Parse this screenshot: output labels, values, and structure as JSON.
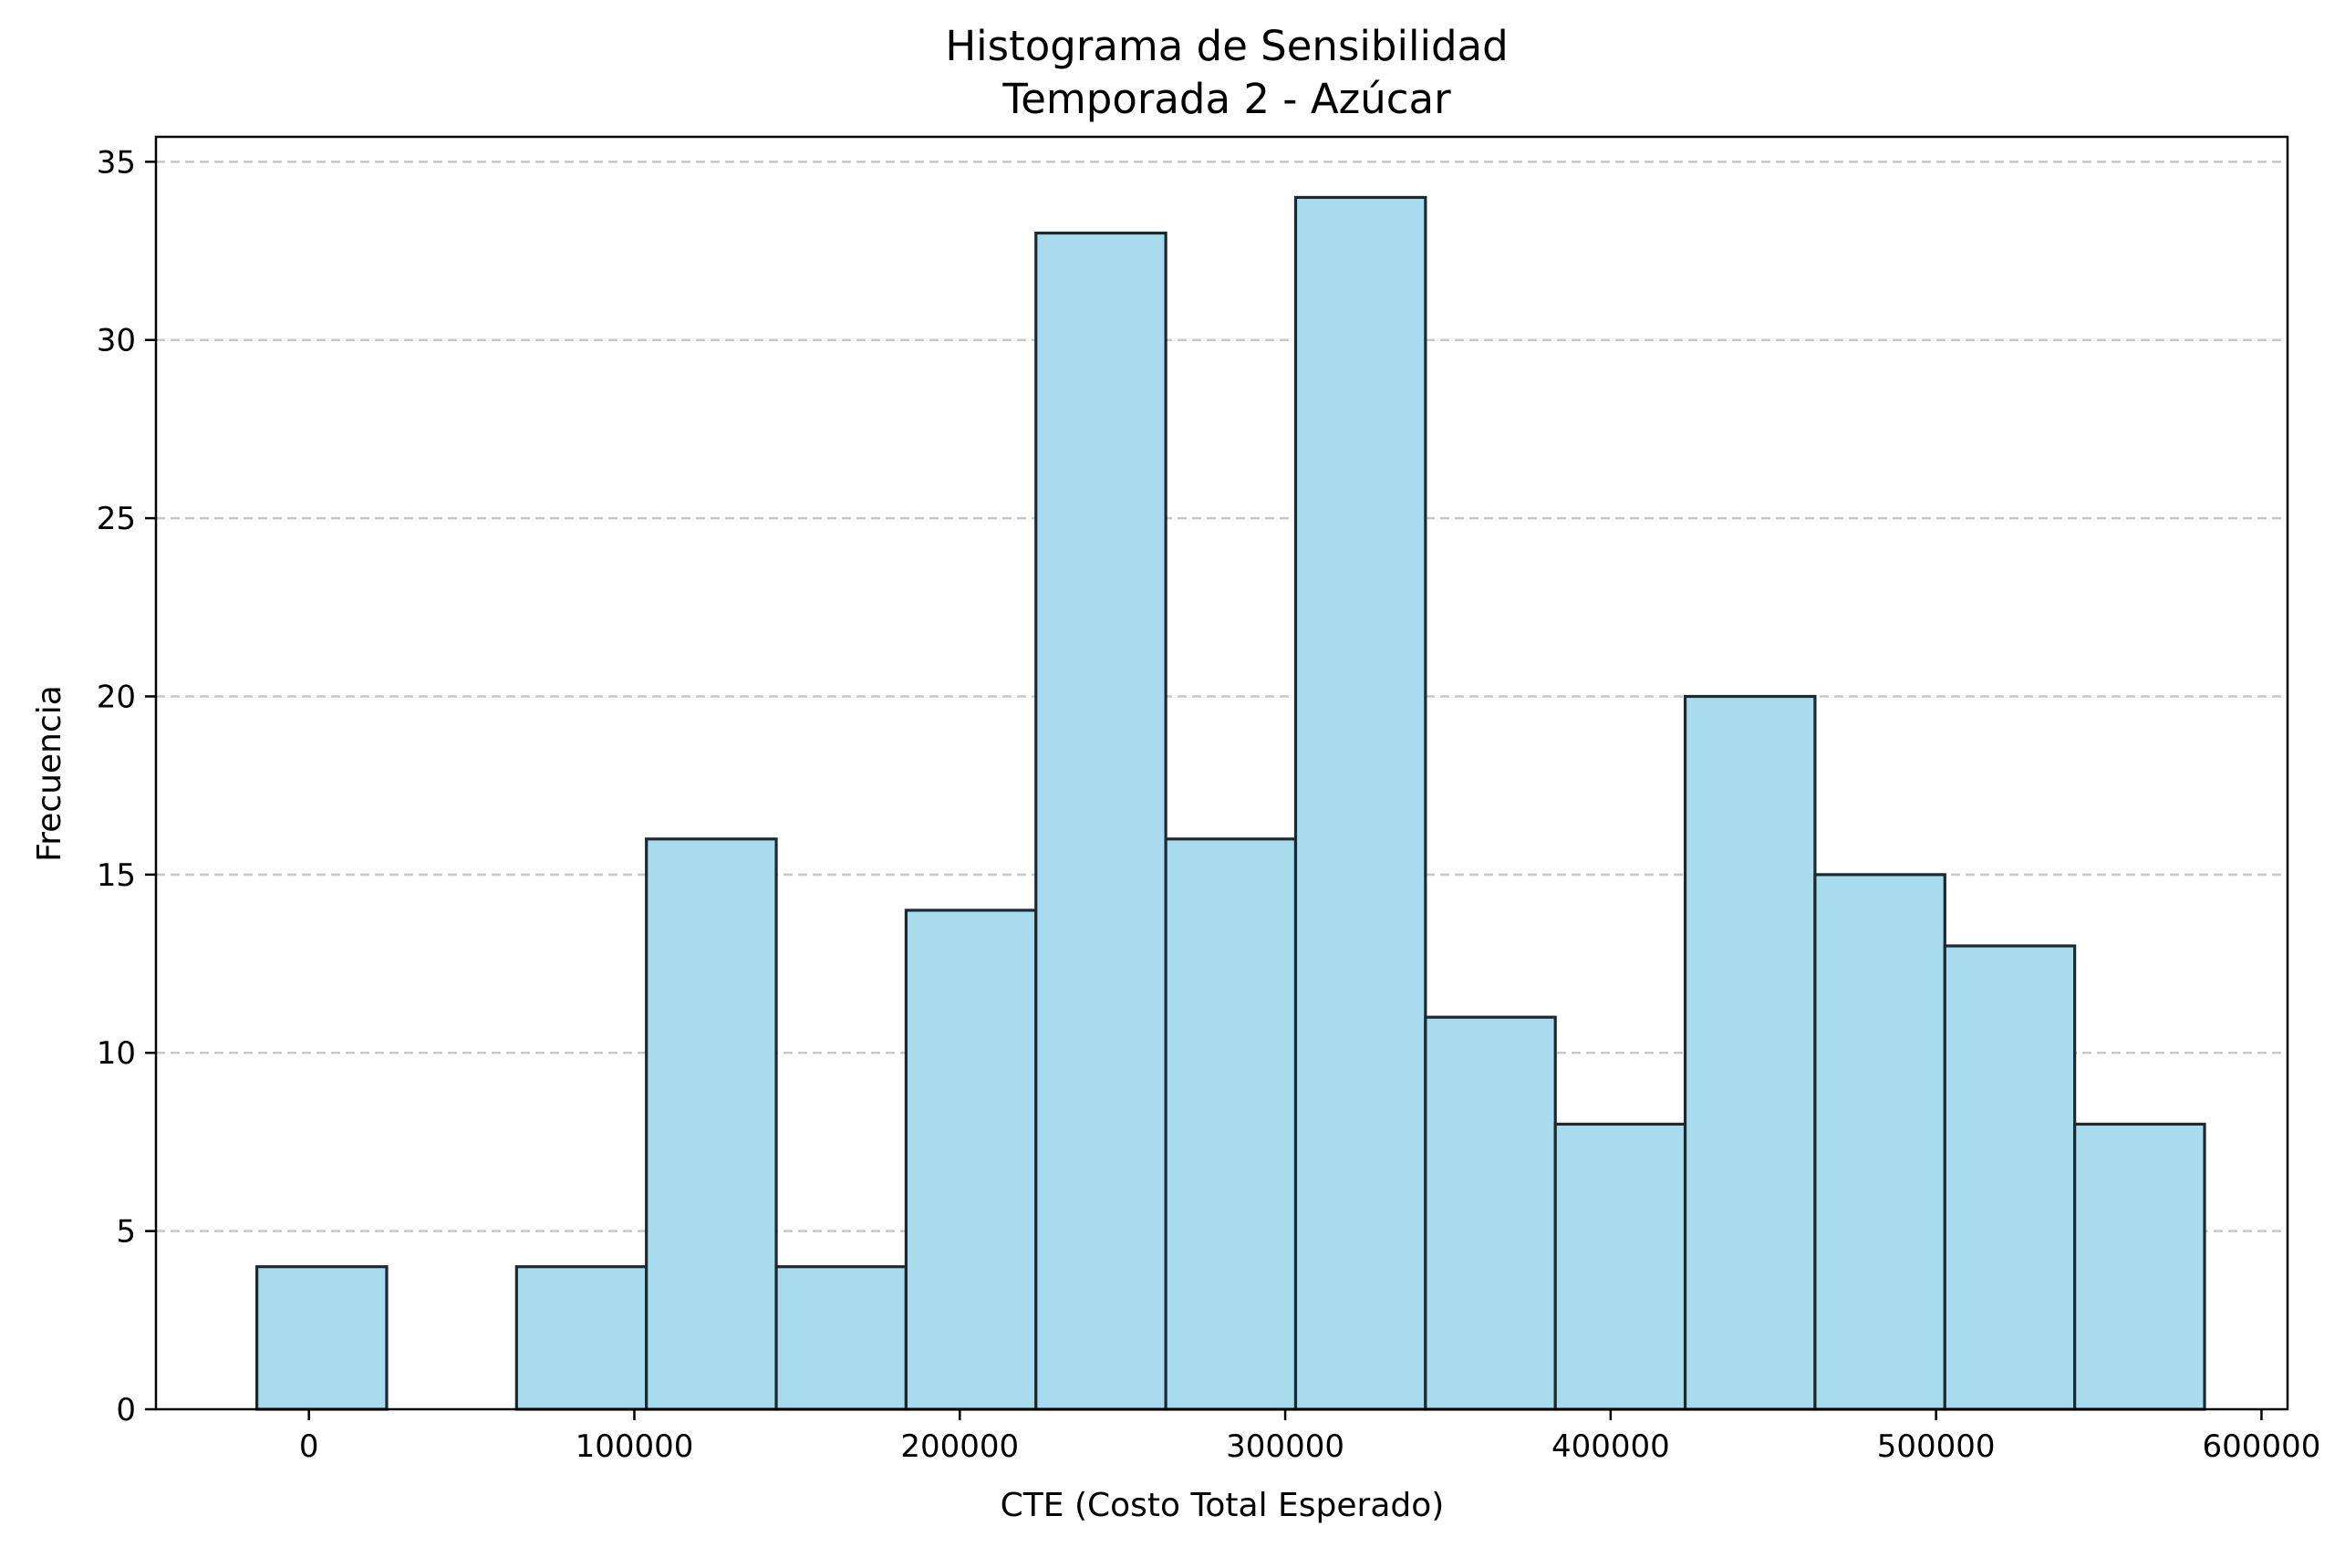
{
  "chart_data": {
    "type": "bar",
    "subtype": "histogram",
    "title": "Histograma de Sensibilidad",
    "subtitle": "Temporada 2 - Azúcar",
    "xlabel": "CTE (Costo Total Esperado)",
    "ylabel": "Frecuencia",
    "xlim": [
      -47000,
      608000
    ],
    "ylim": [
      0,
      35.7
    ],
    "xticks": [
      0,
      100000,
      200000,
      300000,
      400000,
      500000,
      600000
    ],
    "xtick_labels": [
      "0",
      "100000",
      "200000",
      "300000",
      "400000",
      "500000",
      "600000"
    ],
    "yticks": [
      0,
      5,
      10,
      15,
      20,
      25,
      30,
      35
    ],
    "ytick_labels": [
      "0",
      "5",
      "10",
      "15",
      "20",
      "25",
      "30",
      "35"
    ],
    "grid": "y-dashed",
    "bin_edges": [
      -16000,
      23900,
      63800,
      103700,
      143600,
      183500,
      223400,
      263300,
      303200,
      343100,
      383000,
      422900,
      462800,
      502700,
      542600,
      582500
    ],
    "values": [
      4,
      0,
      4,
      16,
      4,
      14,
      33,
      16,
      34,
      11,
      8,
      20,
      15,
      13,
      8
    ],
    "colors": {
      "bar_fill": "#a8dbee",
      "bar_edge": "#1c2a30",
      "grid": "#c8c8c8"
    }
  }
}
